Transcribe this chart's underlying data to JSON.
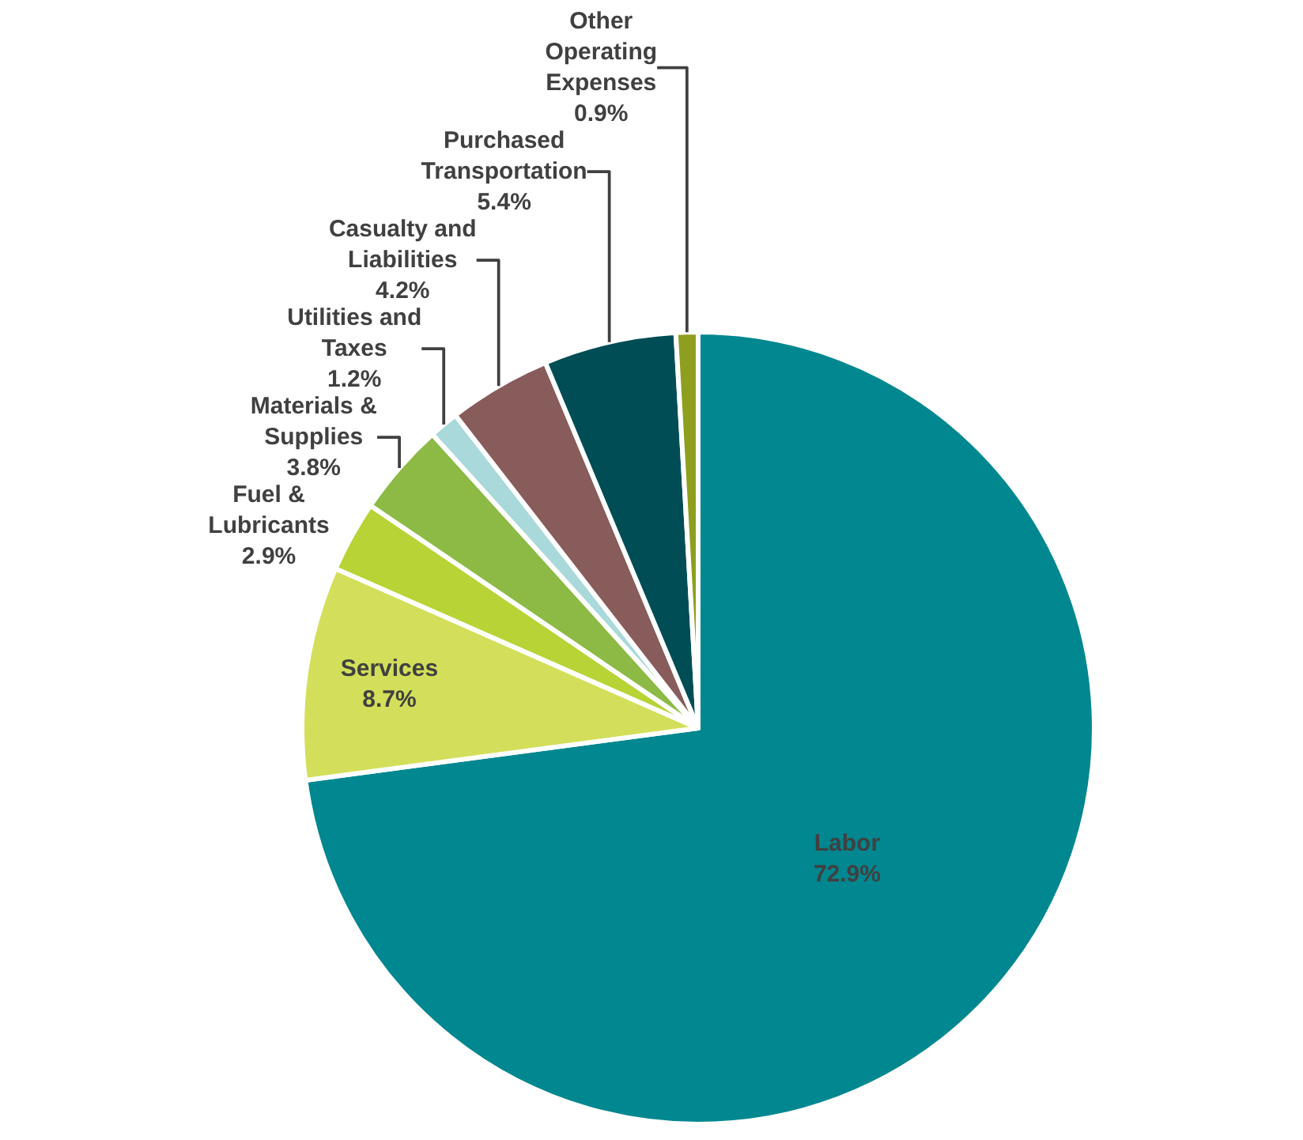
{
  "chart_data": {
    "type": "pie",
    "categories": [
      "Labor",
      "Services",
      "Fuel & Lubricants",
      "Materials & Supplies",
      "Utilities and Taxes",
      "Casualty and Liabilities",
      "Purchased Transportation",
      "Other Operating Expenses"
    ],
    "values": [
      72.9,
      8.7,
      2.9,
      3.8,
      1.2,
      4.2,
      5.4,
      0.9
    ],
    "value_labels": [
      "72.9%",
      "8.7%",
      "2.9%",
      "3.8%",
      "1.2%",
      "4.2%",
      "5.4%",
      "0.9%"
    ],
    "colors": [
      "#00878f",
      "#d3df5a",
      "#b7d335",
      "#8cba45",
      "#a9d9da",
      "#875c5b",
      "#004d55",
      "#8e9f1f"
    ],
    "legend": false
  }
}
